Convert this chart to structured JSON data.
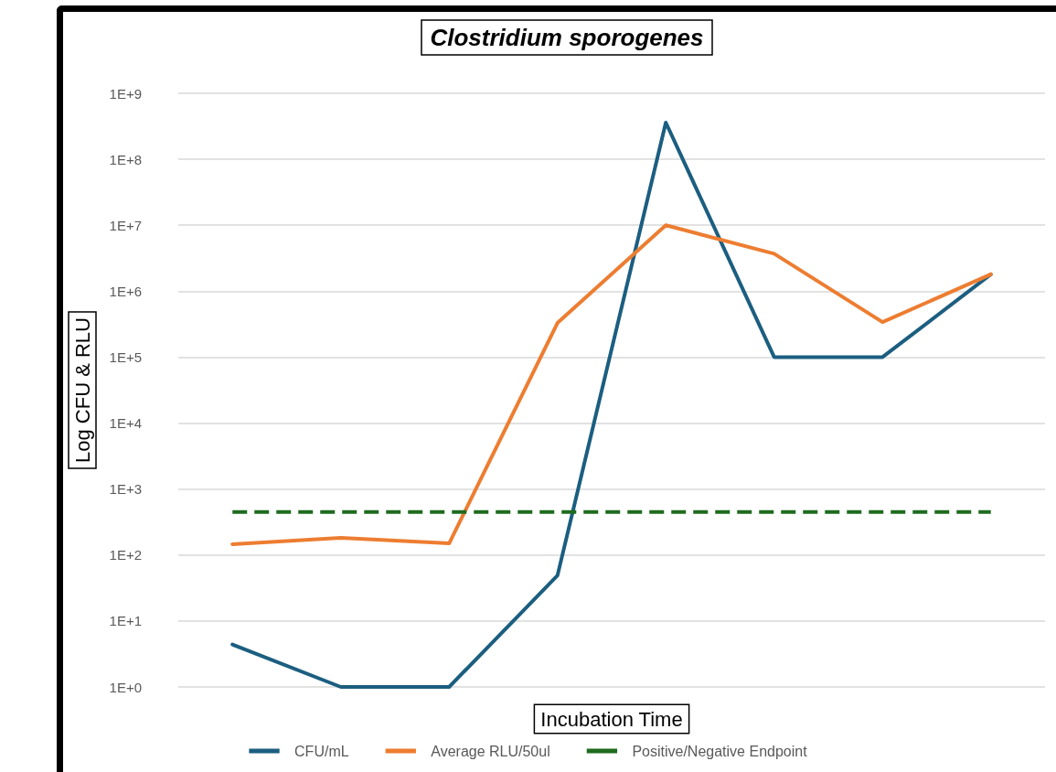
{
  "chart_data": {
    "type": "line",
    "title": "Clostridium sporogenes",
    "xlabel": "Incubation Time",
    "ylabel": "Log CFU & RLU",
    "categories": [
      null,
      null,
      null,
      null,
      null,
      null,
      null,
      null
    ],
    "series": [
      {
        "name": "CFU/mL",
        "color": "#1b5e80",
        "values": [
          4.4,
          1,
          1,
          49,
          360000000,
          100000,
          100000,
          1800000
        ]
      },
      {
        "name": "Average RLU/50ul",
        "color": "#ed7d31",
        "values": [
          146,
          182,
          150,
          330000,
          10000000,
          3700000,
          340000,
          1800000
        ]
      },
      {
        "name": "Positive/Negative Endpoint",
        "color": "#1e6b1e",
        "line_style": "dashed",
        "values": [
          450,
          450,
          450,
          450,
          450,
          450,
          450,
          450
        ]
      }
    ],
    "log": "y",
    "ylim": [
      1,
      1000000000
    ],
    "yticks": [
      {
        "value": 1,
        "label": "1E+0"
      },
      {
        "value": 10,
        "label": "1E+1"
      },
      {
        "value": 100,
        "label": "1E+2"
      },
      {
        "value": 1000,
        "label": "1E+3"
      },
      {
        "value": 10000,
        "label": "1E+4"
      },
      {
        "value": 100000,
        "label": "1E+5"
      },
      {
        "value": 1000000,
        "label": "1E+6"
      },
      {
        "value": 10000000,
        "label": "1E+7"
      },
      {
        "value": 100000000,
        "label": "1E+8"
      },
      {
        "value": 1000000000,
        "label": "1E+9"
      }
    ],
    "grid": "y",
    "legend": "bottom",
    "marker": "none",
    "line_style": "solid"
  }
}
